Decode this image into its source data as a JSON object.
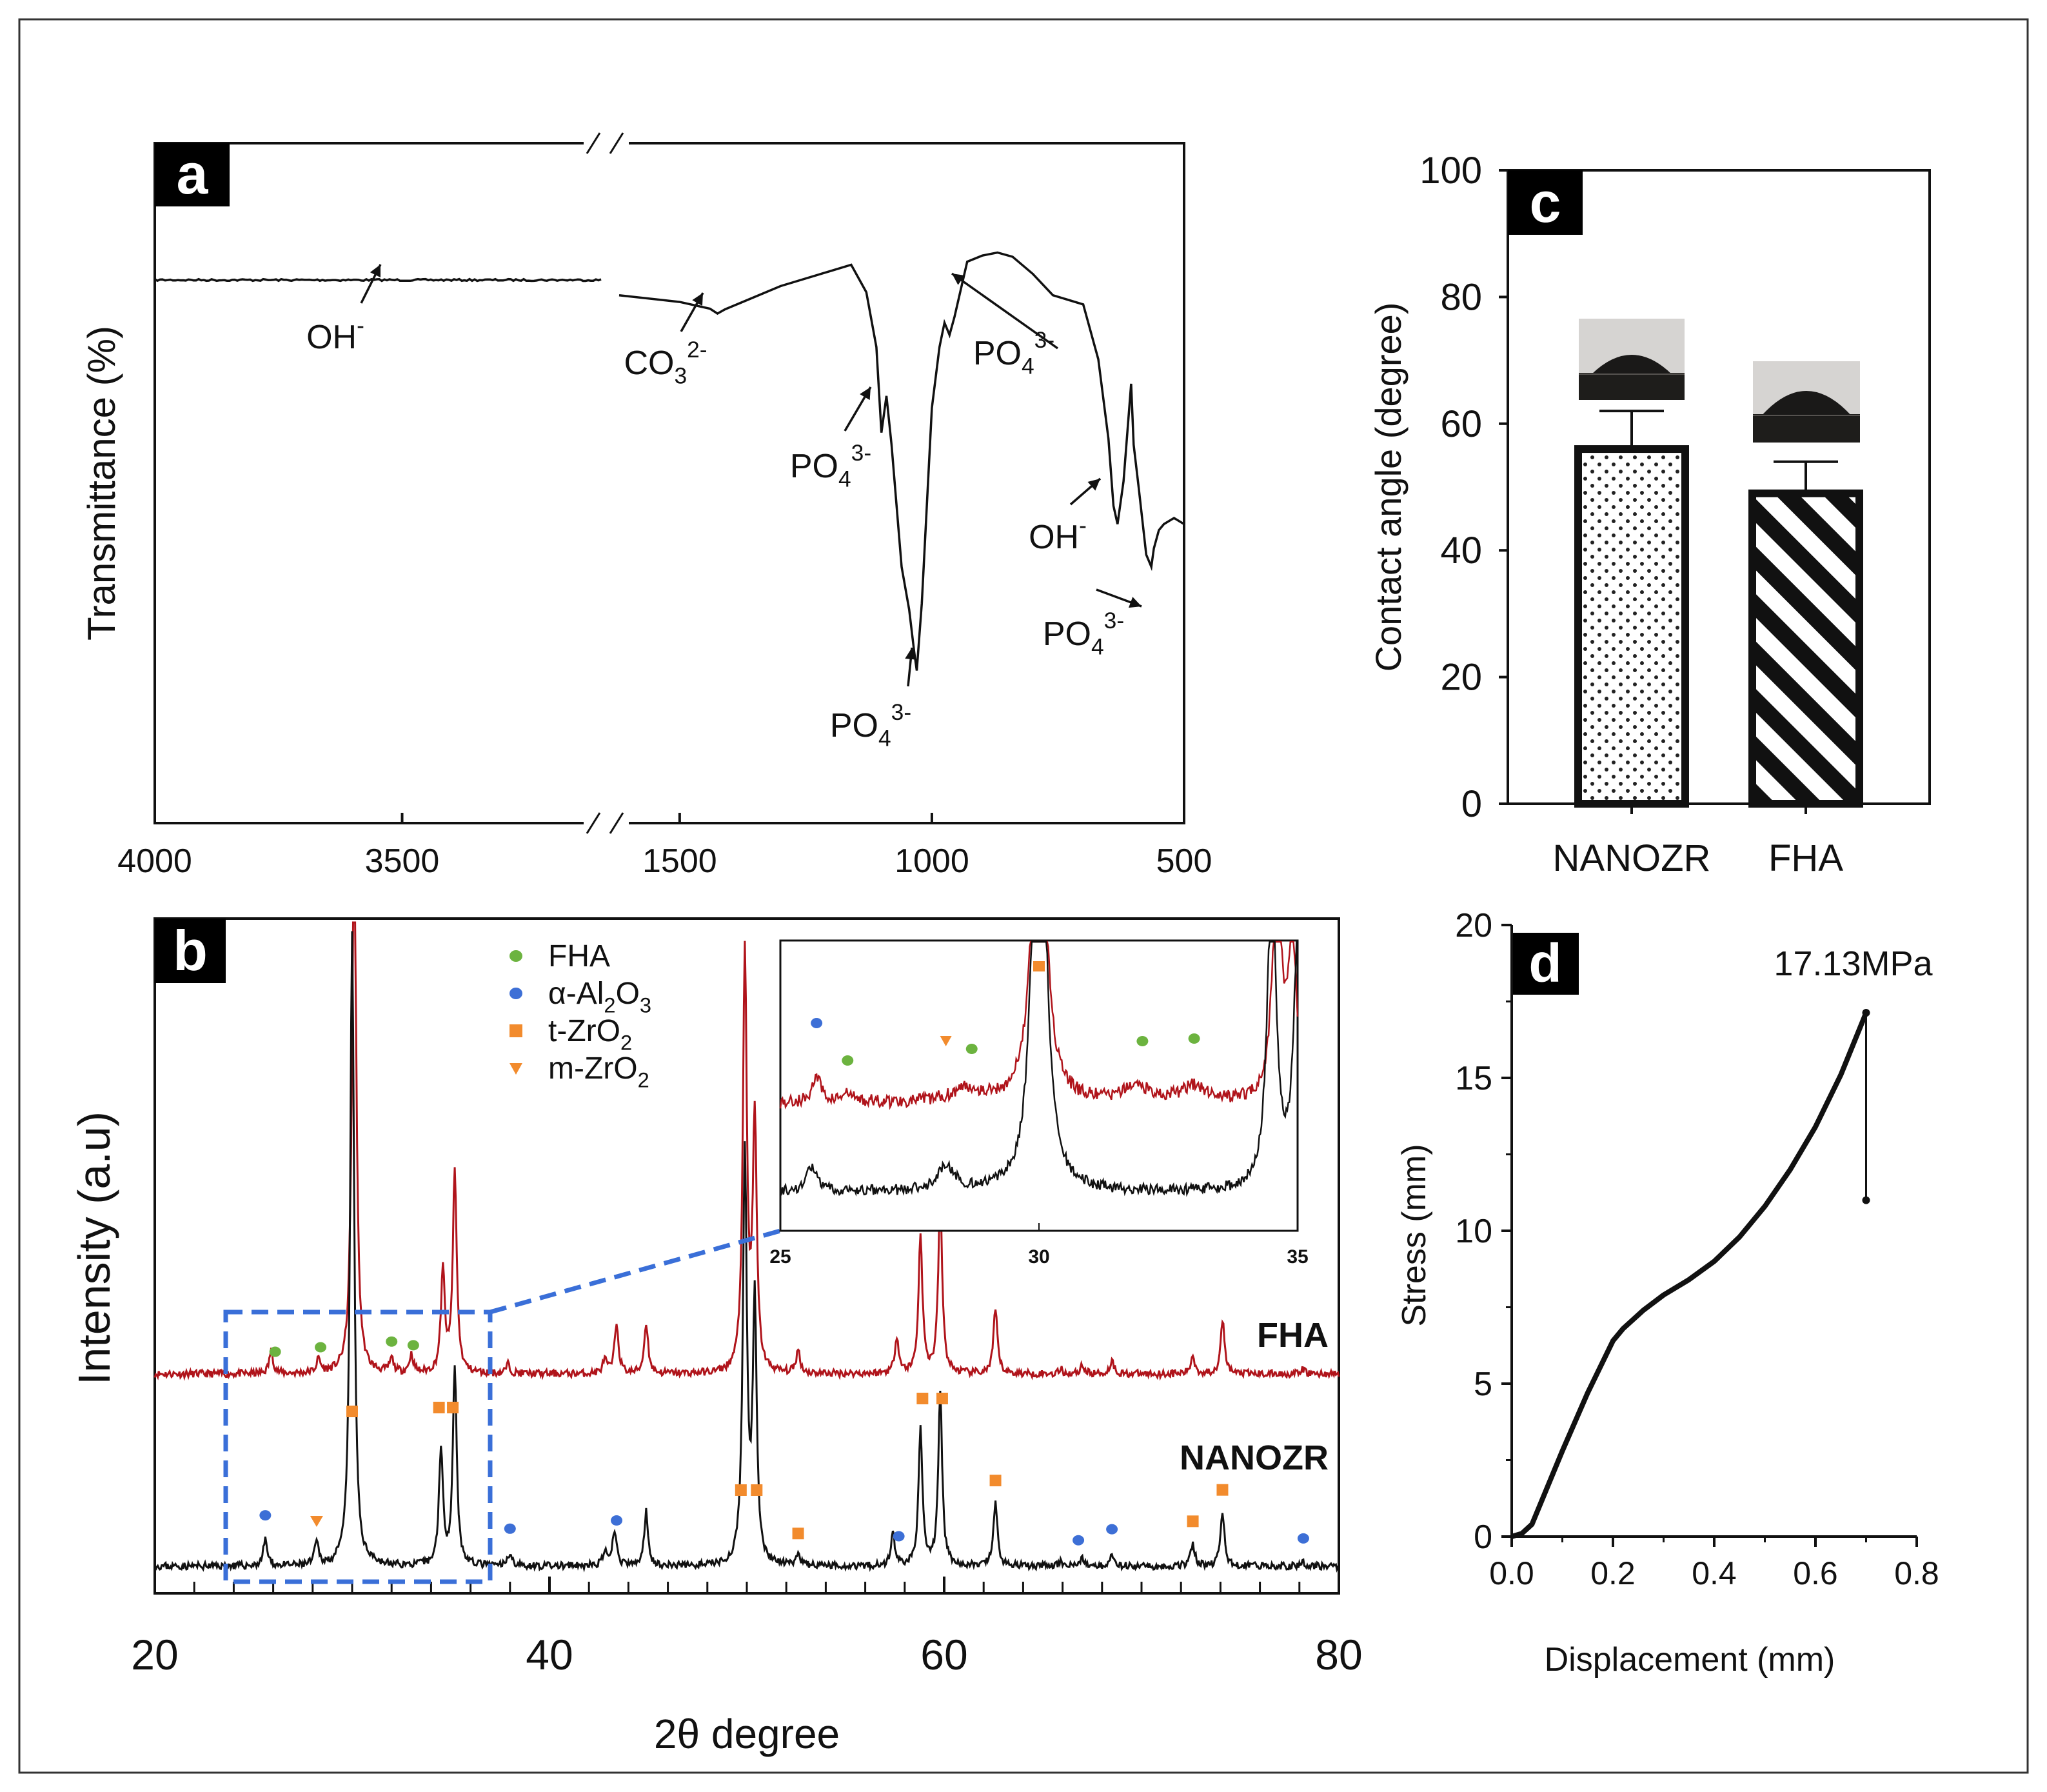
{
  "panels": {
    "a": {
      "letter": "a",
      "type": "line",
      "ylabel": "Transmittance (%)",
      "xlabel": "",
      "x_ticks": [
        4000,
        3500,
        1500,
        1000,
        500
      ],
      "x_ranges": [
        [
          4000,
          3120
        ],
        [
          1620,
          500
        ]
      ],
      "axis_break": true,
      "annotations": [
        {
          "label": "OH",
          "sup": "-",
          "sub": "",
          "x": 3560
        },
        {
          "label": "CO",
          "sub": "3",
          "sup": "2-",
          "x": 1430
        },
        {
          "label": "PO",
          "sub": "4",
          "sup": "3-",
          "x": 1090
        },
        {
          "label": "PO",
          "sub": "4",
          "sup": "3-",
          "x": 1030
        },
        {
          "label": "PO",
          "sub": "4",
          "sup": "3-",
          "x": 960
        },
        {
          "label": "OH",
          "sup": "-",
          "sub": "",
          "x": 632
        },
        {
          "label": "PO",
          "sub": "4",
          "sup": "3-",
          "x": 570
        }
      ],
      "series": [
        {
          "name": "FHA",
          "x": [
            4000,
            3800,
            3600,
            3400,
            3200,
            3120,
            1620,
            1500,
            1440,
            1425,
            1410,
            1300,
            1200,
            1160,
            1130,
            1110,
            1100,
            1090,
            1080,
            1060,
            1045,
            1035,
            1030,
            1020,
            1000,
            985,
            975,
            965,
            955,
            930,
            900,
            870,
            840,
            800,
            760,
            700,
            670,
            650,
            640,
            632,
            620,
            605,
            600,
            590,
            575,
            565,
            560,
            550,
            540,
            520,
            500
          ],
          "y": [
            89,
            89,
            89.2,
            89,
            89,
            89,
            86.5,
            85.4,
            84.3,
            83.5,
            84.2,
            88,
            90.5,
            91.5,
            87,
            78,
            64,
            70,
            62,
            42,
            35,
            28,
            25,
            36,
            68,
            78,
            82,
            80,
            83,
            92,
            93,
            93.5,
            92.8,
            90,
            86.5,
            85,
            76,
            63,
            52,
            49,
            56,
            72,
            62,
            55,
            44,
            42,
            45,
            48,
            49,
            50,
            49
          ]
        }
      ]
    },
    "b": {
      "letter": "b",
      "type": "line",
      "xlabel": "2θ degree",
      "ylabel": "Intensity (a.u)",
      "xlim": [
        20,
        80
      ],
      "x_ticks": [
        20,
        40,
        60,
        80
      ],
      "legend": [
        {
          "label": "FHA",
          "marker": "circle",
          "color": "#6cb33f"
        },
        {
          "label": "α-Al",
          "sub": "2",
          "label2": "O",
          "sub2": "3",
          "marker": "circle",
          "color": "#3d6fd6"
        },
        {
          "label": "t-ZrO",
          "sub": "2",
          "marker": "square",
          "color": "#f28b2d"
        },
        {
          "label": "m-ZrO",
          "sub": "2",
          "marker": "triangle",
          "color": "#f28b2d"
        }
      ],
      "series": [
        {
          "name": "FHA",
          "color": "#b0141b",
          "peaks": [
            [
              25.9,
              5
            ],
            [
              28.3,
              3
            ],
            [
              30.1,
              130
            ],
            [
              32.0,
              3
            ],
            [
              33.0,
              4
            ],
            [
              34.6,
              22
            ],
            [
              35.2,
              44
            ],
            [
              37.9,
              2
            ],
            [
              42.8,
              3
            ],
            [
              43.4,
              11
            ],
            [
              44.9,
              11
            ],
            [
              49.9,
              91
            ],
            [
              50.4,
              55
            ],
            [
              52.6,
              5
            ],
            [
              57.6,
              8
            ],
            [
              58.8,
              30
            ],
            [
              59.8,
              38
            ],
            [
              62.6,
              14
            ],
            [
              65.9,
              1
            ],
            [
              67.0,
              2
            ],
            [
              68.5,
              3
            ],
            [
              72.6,
              4
            ],
            [
              74.1,
              12
            ],
            [
              78.2,
              1
            ]
          ]
        },
        {
          "name": "NANOZR",
          "color": "#111111",
          "peaks": [
            [
              25.6,
              6
            ],
            [
              28.2,
              5
            ],
            [
              30.0,
              140
            ],
            [
              31.0,
              1
            ],
            [
              34.5,
              26
            ],
            [
              35.2,
              44
            ],
            [
              38.0,
              3
            ],
            [
              42.8,
              3
            ],
            [
              43.3,
              8
            ],
            [
              44.9,
              12
            ],
            [
              49.9,
              91
            ],
            [
              50.4,
              58
            ],
            [
              52.6,
              2
            ],
            [
              57.4,
              7
            ],
            [
              58.8,
              30
            ],
            [
              59.8,
              38
            ],
            [
              62.6,
              14
            ],
            [
              65.9,
              1
            ],
            [
              67.0,
              2
            ],
            [
              68.5,
              3
            ],
            [
              72.6,
              5
            ],
            [
              74.1,
              12
            ],
            [
              78.2,
              1
            ]
          ]
        }
      ],
      "labels": {
        "fha": "FHA",
        "nanozr": "NANOZR"
      },
      "markers": {
        "fha": [
          26.1,
          28.4,
          32.0,
          33.1
        ],
        "al2o3": [
          25.6,
          38.0,
          43.4,
          57.7,
          66.8,
          68.5,
          78.2
        ],
        "tzro2": [
          30.0,
          34.4,
          35.1,
          49.7,
          50.5,
          52.6,
          58.9,
          59.9,
          62.6,
          72.6,
          74.1
        ],
        "mzro2": [
          28.2
        ]
      },
      "inset": {
        "xlim": [
          25,
          35
        ],
        "x_ticks": [
          25,
          30,
          35
        ],
        "fha_markers": [
          26.3,
          28.7,
          32.0,
          33.0
        ],
        "al2o3_markers": [
          25.7
        ],
        "tzro2_markers": [
          30.0
        ],
        "mzro2_markers": [
          28.2
        ]
      }
    },
    "c": {
      "letter": "c",
      "type": "bar",
      "ylabel": "Contact angle (degree)",
      "ylim": [
        0,
        100
      ],
      "y_ticks": [
        0,
        20,
        40,
        60,
        80,
        100
      ],
      "categories": [
        "NANOZR",
        "FHA"
      ],
      "values": [
        56,
        49
      ],
      "errors": [
        6,
        5
      ],
      "patterns": [
        "dots",
        "diagonal-stripes"
      ]
    },
    "d": {
      "letter": "d",
      "type": "line",
      "xlabel": "Displacement (mm)",
      "ylabel": "Stress (mm)",
      "xlim": [
        0.0,
        0.8
      ],
      "ylim": [
        0,
        20
      ],
      "x_ticks": [
        "0.0",
        "0.2",
        "0.4",
        "0.6",
        "0.8"
      ],
      "y_ticks": [
        0,
        5,
        10,
        15,
        20
      ],
      "annotation": "17.13MPa",
      "series": [
        {
          "name": "stress",
          "x": [
            0.0,
            0.02,
            0.04,
            0.06,
            0.1,
            0.15,
            0.2,
            0.22,
            0.26,
            0.3,
            0.35,
            0.4,
            0.45,
            0.5,
            0.55,
            0.6,
            0.65,
            0.7,
            0.7
          ],
          "y": [
            0.0,
            0.1,
            0.4,
            1.2,
            2.8,
            4.7,
            6.4,
            6.8,
            7.4,
            7.9,
            8.4,
            9.0,
            9.8,
            10.8,
            12.0,
            13.4,
            15.1,
            17.13,
            11.0
          ]
        }
      ]
    }
  }
}
